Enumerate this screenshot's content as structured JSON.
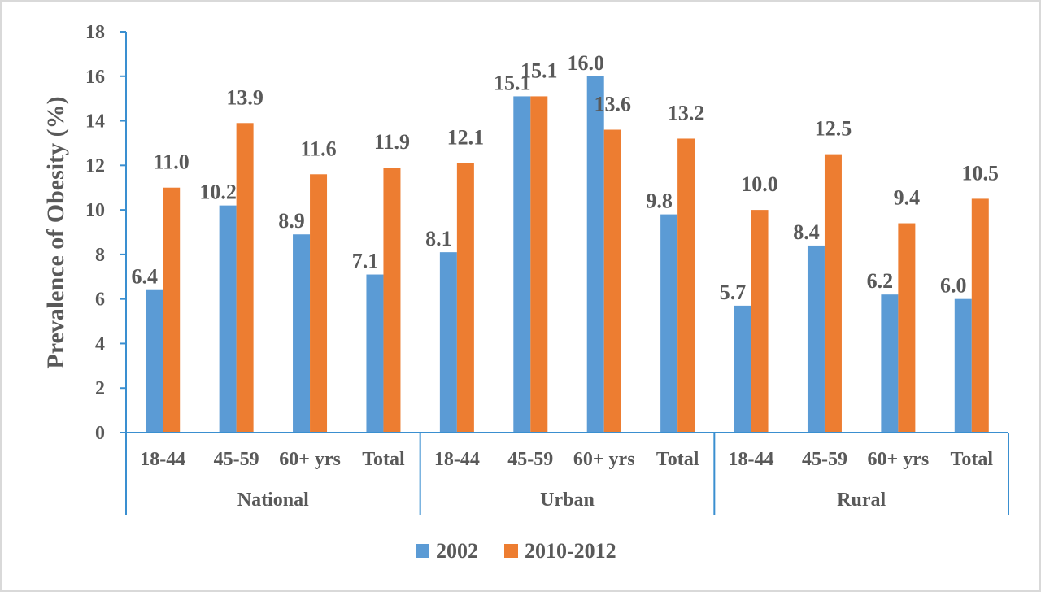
{
  "chart_data": {
    "type": "bar",
    "ylabel": "Prevalence of Obesity (%)",
    "xlabel": "",
    "ylim": [
      0,
      18
    ],
    "yticks": [
      0,
      2,
      4,
      6,
      8,
      10,
      12,
      14,
      16,
      18
    ],
    "grid": false,
    "legend_position": "bottom",
    "groups": [
      {
        "name": "National",
        "categories": [
          "18-44",
          "45-59",
          "60+ yrs",
          "Total"
        ]
      },
      {
        "name": "Urban",
        "categories": [
          "18-44",
          "45-59",
          "60+ yrs",
          "Total"
        ]
      },
      {
        "name": "Rural",
        "categories": [
          "18-44",
          "45-59",
          "60+ yrs",
          "Total"
        ]
      }
    ],
    "series": [
      {
        "name": "2002",
        "color": "#5b9bd5",
        "values": [
          6.4,
          10.2,
          8.9,
          7.1,
          8.1,
          15.1,
          16.0,
          9.8,
          5.7,
          8.4,
          6.2,
          6.0
        ],
        "labels": [
          "6.4",
          "10.2",
          "8.9",
          "7.1",
          "8.1",
          "15.1",
          "16.0",
          "9.8",
          "5.7",
          "8.4",
          "6.2",
          "6.0"
        ]
      },
      {
        "name": "2010-2012",
        "color": "#ed7d31",
        "values": [
          11.0,
          13.9,
          11.6,
          11.9,
          12.1,
          15.1,
          13.6,
          13.2,
          10.0,
          12.5,
          9.4,
          10.5
        ],
        "labels": [
          "11.0",
          "13.9",
          "11.6",
          "11.9",
          "12.1",
          "15.1",
          "13.6",
          "13.2",
          "10.0",
          "12.5",
          "9.4",
          "10.5"
        ]
      }
    ]
  }
}
